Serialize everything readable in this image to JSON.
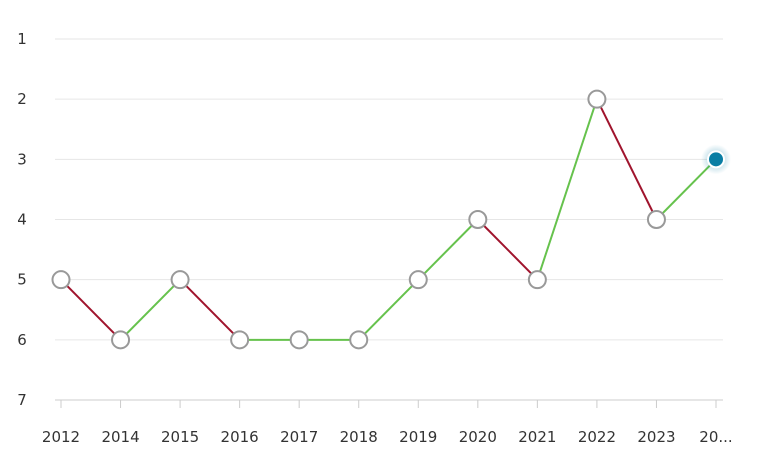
{
  "chart_data": {
    "type": "line",
    "categories": [
      "2012",
      "2014",
      "2015",
      "2016",
      "2017",
      "2018",
      "2019",
      "2020",
      "2021",
      "2022",
      "2023",
      "20..."
    ],
    "values": [
      5,
      6,
      5,
      6,
      6,
      6,
      5,
      4,
      5,
      2,
      4,
      3
    ],
    "y_ticks": [
      "1",
      "2",
      "3",
      "4",
      "5",
      "6",
      "7"
    ],
    "ylim": [
      1,
      7
    ],
    "y_reversed": true,
    "grid": true,
    "title": "",
    "xlabel": "",
    "ylabel": "",
    "highlighted_index": 11,
    "colors": {
      "up": "#66c24d",
      "down": "#a0142d",
      "grid": "#e6e6e6",
      "marker_stroke": "#999999",
      "highlight": "#0a7ea4"
    }
  }
}
